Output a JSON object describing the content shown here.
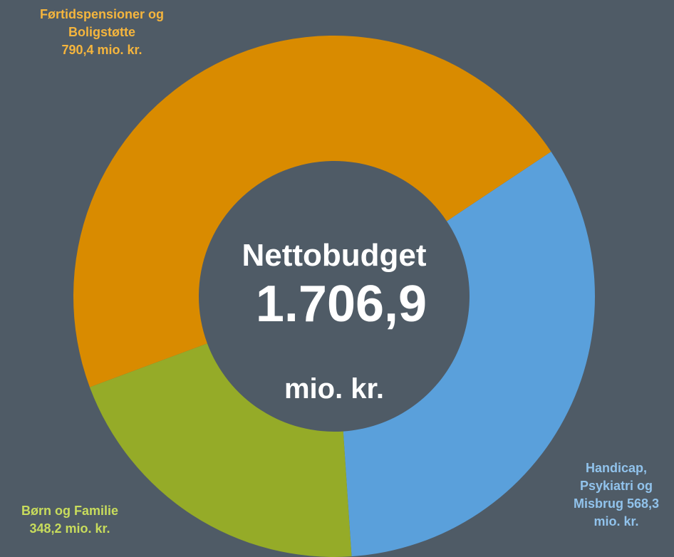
{
  "chart_data": {
    "type": "donut",
    "categories": [
      "Førtidspensioner og Boligstøtte",
      "Handicap, Psykiatri og Misbrug",
      "Børn og Familie"
    ],
    "values": [
      790.4,
      568.3,
      348.2
    ],
    "value_labels": [
      "790,4 mio. kr.",
      "568,3 mio. kr.",
      "348,2 mio. kr."
    ],
    "colors": [
      "#d98b00",
      "#5aa0db",
      "#95ab28"
    ],
    "label_colors": [
      "#f5b53d",
      "#91c3ec",
      "#c8dc5c"
    ],
    "center_title": "Nettobudget",
    "center_value": "1.706,9",
    "center_unit": "mio. kr."
  }
}
